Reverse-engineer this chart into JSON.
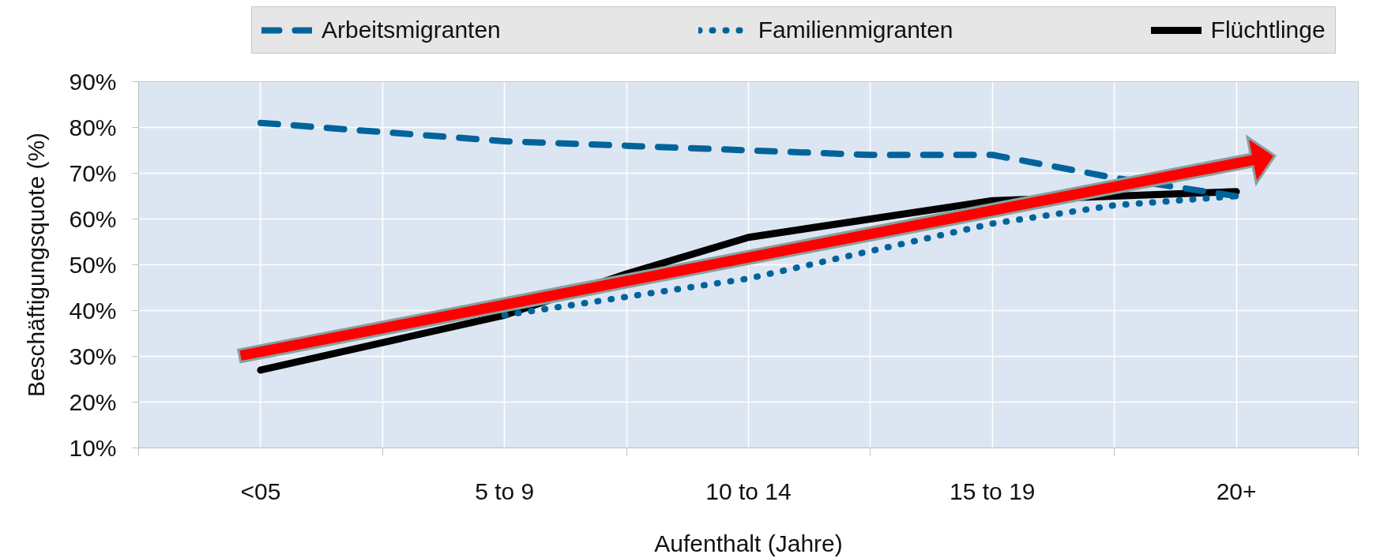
{
  "chart_data": {
    "type": "line",
    "xlabel": "Aufenthalt (Jahre)",
    "ylabel": "Beschäftigungsquote (%)",
    "categories": [
      "<05",
      null,
      "5 to 9",
      null,
      "10 to 14",
      null,
      "15 to 19",
      null,
      "20+"
    ],
    "ylim": [
      10,
      90
    ],
    "yticks": [
      {
        "value": 10,
        "label": "10%"
      },
      {
        "value": 20,
        "label": "20%"
      },
      {
        "value": 30,
        "label": "30%"
      },
      {
        "value": 40,
        "label": "40%"
      },
      {
        "value": 50,
        "label": "50%"
      },
      {
        "value": 60,
        "label": "60%"
      },
      {
        "value": 70,
        "label": "70%"
      },
      {
        "value": 80,
        "label": "80%"
      },
      {
        "value": 90,
        "label": "90%"
      }
    ],
    "grid": true,
    "legend": "top",
    "series": [
      {
        "name": "Arbeitsmigranten",
        "color": "#00649b",
        "line_style": "dashed",
        "values": [
          81,
          79,
          77,
          76,
          75,
          74,
          74,
          69,
          65
        ]
      },
      {
        "name": "Familienmigranten",
        "color": "#00649b",
        "line_style": "dotted",
        "values": [
          null,
          null,
          39,
          43,
          47,
          53,
          59,
          63,
          65
        ]
      },
      {
        "name": "Flüchtlinge",
        "color": "#000000",
        "line_style": "solid",
        "values": [
          27,
          33,
          39,
          48,
          56,
          60,
          64,
          65,
          66
        ]
      }
    ]
  }
}
